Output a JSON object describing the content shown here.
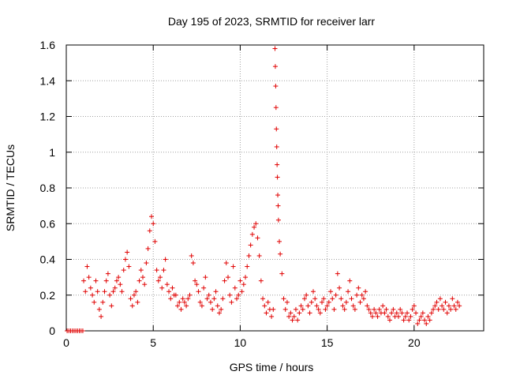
{
  "chart_data": {
    "type": "scatter",
    "title": "Day 195 of 2023, SRMTID for receiver larr",
    "xlabel": "GPS time / hours",
    "ylabel": "SRMTID / TECUs",
    "xlim": [
      0,
      24
    ],
    "ylim": [
      0,
      1.6
    ],
    "xticks": [
      0,
      5,
      10,
      15,
      20
    ],
    "xtick_labels": [
      "0",
      "5",
      "10",
      "15",
      "20"
    ],
    "yticks": [
      0,
      0.2,
      0.4,
      0.6,
      0.8,
      1.0,
      1.2,
      1.4,
      1.6
    ],
    "ytick_labels": [
      "0",
      "0.2",
      "0.4",
      "0.6",
      "0.8",
      "1",
      "1.2",
      "1.4",
      "1.6"
    ],
    "grid": true,
    "marker": "plus",
    "series_color": "#e00000",
    "series": [
      {
        "name": "SRMTID",
        "x": [
          0.05,
          0.15,
          0.25,
          0.35,
          0.45,
          0.55,
          0.65,
          0.75,
          0.85,
          0.95,
          1.0,
          1.1,
          1.2,
          1.3,
          1.4,
          1.5,
          1.6,
          1.7,
          1.8,
          1.9,
          2.0,
          2.1,
          2.2,
          2.3,
          2.4,
          2.5,
          2.6,
          2.7,
          2.8,
          2.9,
          3.0,
          3.1,
          3.2,
          3.3,
          3.4,
          3.5,
          3.6,
          3.7,
          3.8,
          3.9,
          4.0,
          4.1,
          4.2,
          4.3,
          4.4,
          4.5,
          4.6,
          4.7,
          4.8,
          4.9,
          5.0,
          5.1,
          5.2,
          5.3,
          5.4,
          5.5,
          5.6,
          5.7,
          5.8,
          5.9,
          6.0,
          6.1,
          6.2,
          6.3,
          6.4,
          6.5,
          6.6,
          6.7,
          6.8,
          6.9,
          7.0,
          7.1,
          7.2,
          7.3,
          7.4,
          7.5,
          7.6,
          7.7,
          7.8,
          7.9,
          8.0,
          8.1,
          8.2,
          8.3,
          8.4,
          8.5,
          8.6,
          8.7,
          8.8,
          8.9,
          9.0,
          9.1,
          9.2,
          9.3,
          9.4,
          9.5,
          9.6,
          9.7,
          9.8,
          9.9,
          10.0,
          10.1,
          10.2,
          10.3,
          10.4,
          10.5,
          10.6,
          10.7,
          10.8,
          10.9,
          11.0,
          11.1,
          11.2,
          11.3,
          11.4,
          11.5,
          11.6,
          11.7,
          11.8,
          11.9,
          12.0,
          12.02,
          12.04,
          12.06,
          12.08,
          12.1,
          12.12,
          12.14,
          12.16,
          12.18,
          12.2,
          12.25,
          12.3,
          12.4,
          12.5,
          12.6,
          12.7,
          12.8,
          12.9,
          13.0,
          13.1,
          13.2,
          13.3,
          13.4,
          13.5,
          13.6,
          13.7,
          13.8,
          13.9,
          14.0,
          14.1,
          14.2,
          14.3,
          14.4,
          14.5,
          14.6,
          14.7,
          14.8,
          14.9,
          15.0,
          15.1,
          15.2,
          15.3,
          15.4,
          15.5,
          15.6,
          15.7,
          15.8,
          15.9,
          16.0,
          16.1,
          16.2,
          16.3,
          16.4,
          16.5,
          16.6,
          16.7,
          16.8,
          16.9,
          17.0,
          17.1,
          17.2,
          17.3,
          17.4,
          17.5,
          17.6,
          17.7,
          17.8,
          17.9,
          18.0,
          18.1,
          18.2,
          18.3,
          18.4,
          18.5,
          18.6,
          18.7,
          18.8,
          18.9,
          19.0,
          19.1,
          19.2,
          19.3,
          19.4,
          19.5,
          19.6,
          19.7,
          19.8,
          19.9,
          20.0,
          20.1,
          20.2,
          20.3,
          20.4,
          20.5,
          20.6,
          20.7,
          20.8,
          20.9,
          21.0,
          21.1,
          21.2,
          21.3,
          21.4,
          21.5,
          21.6,
          21.7,
          21.8,
          21.9,
          22.0,
          22.1,
          22.2,
          22.3,
          22.4,
          22.5,
          22.6
        ],
        "y": [
          0.0,
          0.0,
          0.0,
          0.0,
          0.0,
          0.0,
          0.0,
          0.0,
          0.0,
          0.0,
          0.28,
          0.22,
          0.36,
          0.3,
          0.24,
          0.2,
          0.16,
          0.28,
          0.22,
          0.12,
          0.08,
          0.16,
          0.22,
          0.28,
          0.32,
          0.2,
          0.14,
          0.22,
          0.24,
          0.28,
          0.3,
          0.26,
          0.22,
          0.34,
          0.4,
          0.44,
          0.36,
          0.18,
          0.14,
          0.2,
          0.22,
          0.16,
          0.28,
          0.34,
          0.3,
          0.26,
          0.38,
          0.46,
          0.56,
          0.64,
          0.6,
          0.5,
          0.34,
          0.28,
          0.3,
          0.24,
          0.34,
          0.4,
          0.26,
          0.22,
          0.18,
          0.24,
          0.2,
          0.2,
          0.14,
          0.16,
          0.12,
          0.18,
          0.16,
          0.14,
          0.18,
          0.2,
          0.42,
          0.38,
          0.28,
          0.26,
          0.22,
          0.16,
          0.14,
          0.24,
          0.3,
          0.18,
          0.2,
          0.16,
          0.12,
          0.18,
          0.22,
          0.14,
          0.1,
          0.12,
          0.18,
          0.28,
          0.38,
          0.3,
          0.2,
          0.16,
          0.36,
          0.24,
          0.18,
          0.2,
          0.28,
          0.22,
          0.26,
          0.3,
          0.36,
          0.42,
          0.48,
          0.54,
          0.58,
          0.6,
          0.52,
          0.42,
          0.28,
          0.18,
          0.14,
          0.1,
          0.16,
          0.12,
          0.08,
          0.12,
          1.58,
          1.48,
          1.37,
          1.25,
          1.13,
          1.03,
          0.93,
          0.86,
          0.76,
          0.7,
          0.62,
          0.5,
          0.43,
          0.32,
          0.18,
          0.12,
          0.16,
          0.08,
          0.1,
          0.06,
          0.08,
          0.12,
          0.06,
          0.1,
          0.14,
          0.12,
          0.18,
          0.2,
          0.14,
          0.1,
          0.16,
          0.22,
          0.18,
          0.14,
          0.12,
          0.1,
          0.16,
          0.18,
          0.12,
          0.14,
          0.16,
          0.22,
          0.18,
          0.12,
          0.2,
          0.32,
          0.24,
          0.18,
          0.14,
          0.12,
          0.16,
          0.22,
          0.28,
          0.18,
          0.14,
          0.12,
          0.2,
          0.24,
          0.16,
          0.2,
          0.18,
          0.22,
          0.14,
          0.12,
          0.1,
          0.08,
          0.12,
          0.1,
          0.08,
          0.12,
          0.1,
          0.14,
          0.1,
          0.12,
          0.08,
          0.06,
          0.1,
          0.12,
          0.08,
          0.1,
          0.08,
          0.12,
          0.1,
          0.06,
          0.08,
          0.1,
          0.06,
          0.08,
          0.12,
          0.14,
          0.1,
          0.04,
          0.06,
          0.08,
          0.1,
          0.06,
          0.04,
          0.08,
          0.06,
          0.1,
          0.12,
          0.14,
          0.16,
          0.12,
          0.18,
          0.14,
          0.12,
          0.16,
          0.1,
          0.14,
          0.12,
          0.18,
          0.14,
          0.12,
          0.16,
          0.14
        ]
      }
    ]
  }
}
